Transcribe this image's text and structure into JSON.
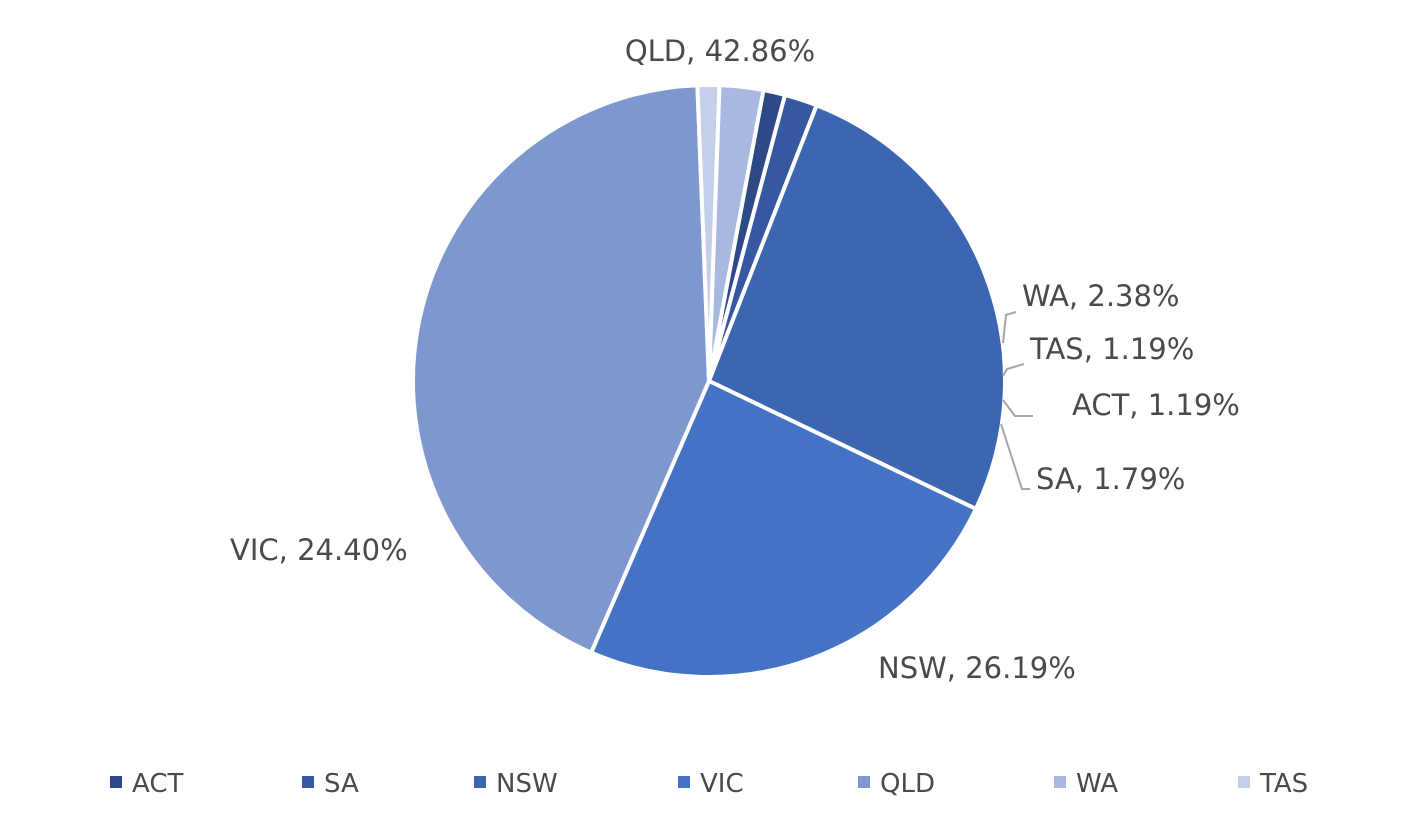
{
  "chart_data": {
    "type": "pie",
    "categories": [
      "ACT",
      "SA",
      "NSW",
      "VIC",
      "QLD",
      "WA",
      "TAS"
    ],
    "values": [
      1.19,
      1.79,
      26.19,
      24.4,
      42.86,
      2.38,
      1.19
    ],
    "data_labels": [
      "ACT, 1.19%",
      "SA, 1.79%",
      "NSW, 26.19%",
      "VIC, 24.40%",
      "QLD, 42.86%",
      "WA, 2.38%",
      "TAS, 1.19%"
    ],
    "colors": [
      "#2e4a86",
      "#3558a0",
      "#3d66b2",
      "#4472c4",
      "#7f97cf",
      "#a9b8e0",
      "#c5cfea"
    ],
    "legend_position": "bottom",
    "slice_order": [
      "ACT",
      "SA",
      "NSW",
      "VIC",
      "QLD",
      "TAS",
      "WA"
    ]
  }
}
